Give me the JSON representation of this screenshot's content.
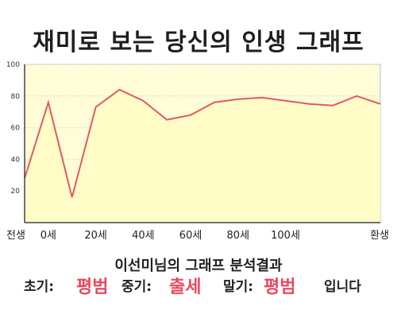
{
  "title": "재미로 보는 당신의 인생 그래프",
  "subtitle": "이선미님의 그래프 분석결과",
  "result": {
    "early_label": "초기:",
    "early_value": "평범",
    "mid_label": "중기:",
    "mid_value": "출세",
    "late_label": "말기:",
    "late_value": "평범",
    "ending": "입니다"
  },
  "colors": {
    "line": "#e05a63",
    "fill": "#fffcc8",
    "plot_bg": "#fffdd8",
    "grid": "#d9d9d9",
    "highlight": "#e84a5f"
  },
  "chart_data": {
    "type": "area",
    "x": [
      -4,
      0,
      4,
      8,
      12,
      16,
      20,
      24,
      28,
      32,
      36,
      40,
      44,
      48,
      52,
      56
    ],
    "categories": [
      "전생",
      "0세",
      "20세",
      "40세",
      "60세",
      "80세",
      "100세",
      "환생"
    ],
    "category_x": [
      -4,
      0,
      8,
      16,
      24,
      32,
      40,
      48
    ],
    "values": [
      28,
      76,
      16,
      73,
      84,
      77,
      65,
      68,
      76,
      78,
      79,
      77,
      75,
      74,
      80,
      75
    ],
    "xlim": [
      -4,
      56
    ],
    "ylim": [
      0,
      100
    ],
    "yticks": [
      20,
      40,
      60,
      80,
      100
    ],
    "grid": true
  }
}
